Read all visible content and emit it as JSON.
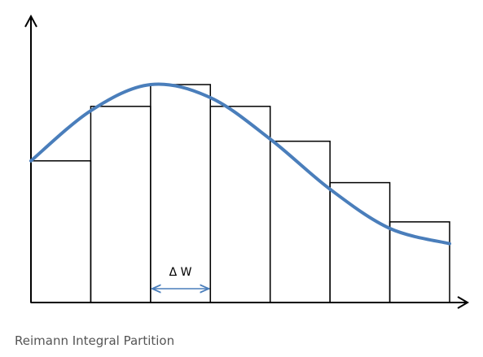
{
  "figure": {
    "caption": "Reimann Integral Partition",
    "width_label": "Δ W",
    "curve_color": "#4a7ebb",
    "marker_color": "#4a7ebb",
    "rect_color": "#000000"
  },
  "partition": {
    "count": 7,
    "rectangle_heights": [
      0.65,
      0.9,
      1.0,
      0.9,
      0.74,
      0.55,
      0.37
    ],
    "curve_samples": [
      0.65,
      0.88,
      1.0,
      0.94,
      0.75,
      0.52,
      0.34,
      0.27
    ],
    "annotated_interval": 2
  }
}
